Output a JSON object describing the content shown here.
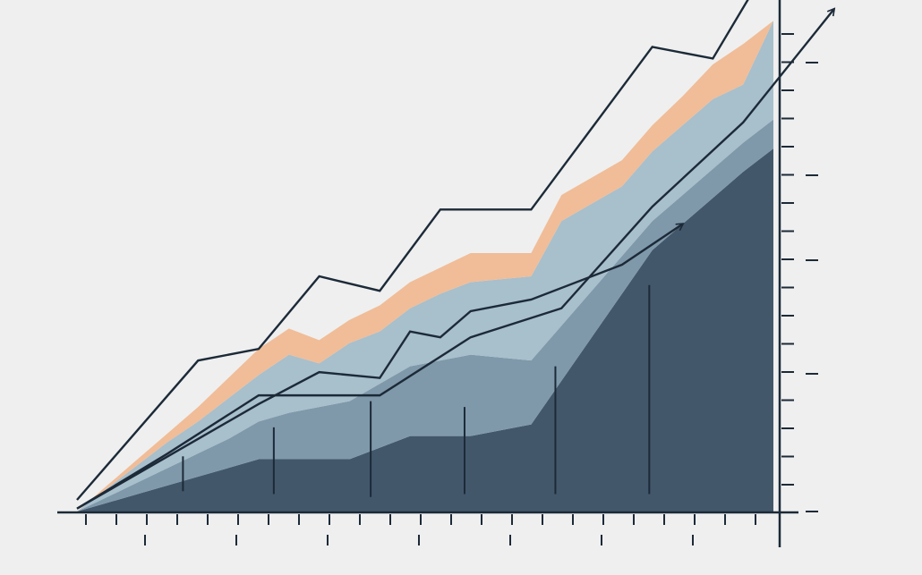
{
  "chart_data": {
    "type": "area",
    "stacked": true,
    "title": "",
    "xlabel": "",
    "ylabel": "",
    "x": [
      0,
      1,
      2,
      3,
      4,
      5,
      6,
      7,
      8,
      9,
      10,
      11,
      12,
      13,
      14,
      15,
      16,
      17,
      18,
      19,
      20,
      21,
      22,
      23
    ],
    "xlim": [
      0,
      23
    ],
    "ylim": [
      0,
      17
    ],
    "grid": false,
    "legend": "none",
    "series": [
      {
        "color": "#43576b",
        "values": [
          0,
          0.3,
          0.6,
          0.9,
          1.2,
          1.5,
          1.8,
          1.8,
          1.8,
          1.8,
          2.2,
          2.6,
          2.6,
          2.6,
          2.8,
          3.0,
          4.5,
          6.0,
          7.5,
          9.0,
          9.9,
          10.8,
          11.7,
          12.5
        ]
      },
      {
        "color": "#7f99ab",
        "values": [
          0,
          0.2,
          0.4,
          0.6,
          0.8,
          1.0,
          1.3,
          1.6,
          1.8,
          2.0,
          2.2,
          2.4,
          2.6,
          2.8,
          2.5,
          2.2,
          1.9,
          1.6,
          1.3,
          1.0,
          1.0,
          1.0,
          1.0,
          1.0
        ]
      },
      {
        "color": "#a8bfcc",
        "values": [
          0,
          0.3,
          0.6,
          0.9,
          1.1,
          1.4,
          1.6,
          2.0,
          1.5,
          2.0,
          1.8,
          2.0,
          2.3,
          2.5,
          2.7,
          2.9,
          3.6,
          3.0,
          2.4,
          2.4,
          2.4,
          2.4,
          2.0,
          3.4
        ]
      },
      {
        "color": "#f0bd98",
        "values": [
          0,
          0.1,
          0.2,
          0.3,
          0.5,
          0.7,
          0.9,
          0.9,
          0.8,
          0.8,
          0.9,
          0.9,
          0.9,
          1.0,
          0.9,
          0.8,
          0.9,
          0.9,
          0.9,
          0.9,
          1.0,
          1.2,
          1.4,
          0
        ]
      }
    ],
    "trend_lines": [
      {
        "color": "#1c2a38",
        "points": [
          [
            0,
            0.4
          ],
          [
            2,
            2.8
          ],
          [
            4,
            5.2
          ],
          [
            6,
            5.6
          ],
          [
            8,
            8.1
          ],
          [
            10,
            7.6
          ],
          [
            12,
            10.4
          ],
          [
            13,
            10.4
          ],
          [
            14,
            10.4
          ],
          [
            15,
            10.4
          ],
          [
            17,
            13.2
          ],
          [
            19,
            16.0
          ],
          [
            21,
            15.6
          ],
          [
            23,
            19.1
          ]
        ]
      },
      {
        "color": "#1c2a38",
        "points": [
          [
            0,
            0.1
          ],
          [
            2,
            1.3
          ],
          [
            4,
            2.5
          ],
          [
            6,
            3.7
          ],
          [
            8,
            4.8
          ],
          [
            10,
            4.6
          ],
          [
            11,
            6.2
          ],
          [
            12,
            6.0
          ],
          [
            13,
            6.9
          ],
          [
            15,
            7.3
          ],
          [
            18,
            8.5
          ],
          [
            20,
            9.9
          ]
        ]
      },
      {
        "color": "#1c2a38",
        "points": [
          [
            0,
            0.1
          ],
          [
            3,
            2.0
          ],
          [
            6,
            4.0
          ],
          [
            10,
            4.0
          ],
          [
            13,
            6.0
          ],
          [
            16,
            7.0
          ],
          [
            19,
            10.5
          ],
          [
            22,
            13.4
          ],
          [
            25,
            17.3
          ]
        ]
      }
    ],
    "vertical_markers": [
      {
        "x": 3.5,
        "y0": 0.7,
        "y1": 1.9
      },
      {
        "x": 6.5,
        "y0": 0.6,
        "y1": 2.9
      },
      {
        "x": 9.7,
        "y0": 0.5,
        "y1": 3.8
      },
      {
        "x": 12.8,
        "y0": 0.6,
        "y1": 3.6
      },
      {
        "x": 15.8,
        "y0": 0.6,
        "y1": 5.0
      },
      {
        "x": 18.9,
        "y0": 0.6,
        "y1": 7.8
      }
    ]
  }
}
